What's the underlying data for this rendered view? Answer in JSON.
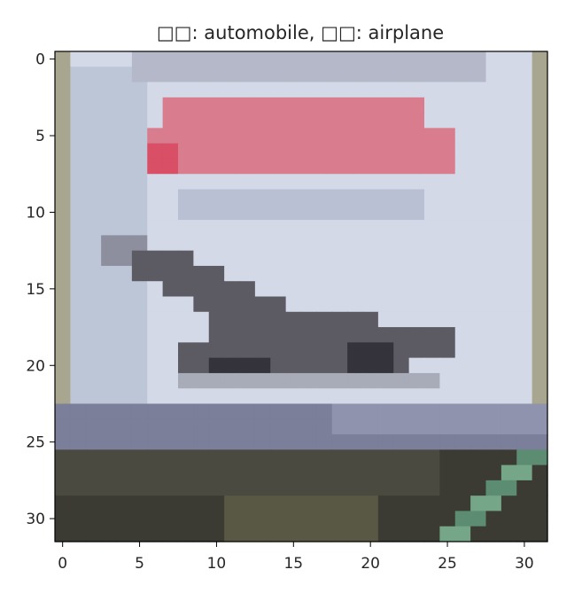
{
  "chart_data": {
    "type": "heatmap",
    "title": "□□: automobile, □□: airplane",
    "xlabel": "",
    "ylabel": "",
    "xlim": [
      -0.5,
      31.5
    ],
    "ylim": [
      31.5,
      -0.5
    ],
    "x_ticks": [
      "0",
      "5",
      "10",
      "15",
      "20",
      "25",
      "30"
    ],
    "y_ticks": [
      "0",
      "5",
      "10",
      "15",
      "20",
      "25",
      "30"
    ],
    "grid": false,
    "legend": "none",
    "image_size": [
      32,
      32
    ],
    "colors": {
      "sky": "#d3d9e6",
      "sky_left": "#bcc6d6",
      "frame_edge": "#a9a68f",
      "banner_top": "#b5b8c9",
      "banner_red": "#d87c8e",
      "banner_red_strong": "#d84f66",
      "banner_shadow": "#b9c0d3",
      "plane_light": "#8d8f9f",
      "plane_mid": "#5c5a63",
      "plane_dark": "#34323b",
      "plane_shadow": "#a8abb8",
      "ground_band": "#7b7f99",
      "ground_band_light": "#8f93ad",
      "ground_dark": "#3c3b33",
      "ground_mid": "#4a4a40",
      "ground_olive": "#595845",
      "grass_green": "#5c8c72",
      "grass_light": "#76a688"
    },
    "regions": [
      {
        "name": "sky",
        "x": [
          1,
          30
        ],
        "y": [
          0,
          22
        ],
        "color": "sky"
      },
      {
        "name": "sky-left",
        "x": [
          1,
          5
        ],
        "y": [
          1,
          22
        ],
        "color": "sky_left"
      },
      {
        "name": "frame-left",
        "x": [
          0,
          0
        ],
        "y": [
          0,
          23
        ],
        "color": "frame_edge"
      },
      {
        "name": "frame-right",
        "x": [
          31,
          31
        ],
        "y": [
          0,
          23
        ],
        "color": "frame_edge"
      },
      {
        "name": "banner-top",
        "x": [
          5,
          27
        ],
        "y": [
          0,
          1
        ],
        "color": "banner_top"
      },
      {
        "name": "banner-row-1",
        "x": [
          7,
          23
        ],
        "y": [
          3,
          4
        ],
        "color": "banner_red"
      },
      {
        "name": "banner-row-2",
        "x": [
          6,
          25
        ],
        "y": [
          5,
          5
        ],
        "color": "banner_red"
      },
      {
        "name": "banner-row-3",
        "x": [
          6,
          25
        ],
        "y": [
          6,
          7
        ],
        "color": "banner_red"
      },
      {
        "name": "banner-accent",
        "x": [
          6,
          7
        ],
        "y": [
          6,
          7
        ],
        "color": "banner_red_strong"
      },
      {
        "name": "banner-shadow",
        "x": [
          8,
          23
        ],
        "y": [
          9,
          10
        ],
        "color": "banner_shadow"
      },
      {
        "name": "plane-nose-1",
        "x": [
          3,
          5
        ],
        "y": [
          12,
          13
        ],
        "color": "plane_light"
      },
      {
        "name": "plane-nose-2",
        "x": [
          5,
          8
        ],
        "y": [
          13,
          14
        ],
        "color": "plane_mid"
      },
      {
        "name": "plane-body-1",
        "x": [
          7,
          10
        ],
        "y": [
          14,
          15
        ],
        "color": "plane_mid"
      },
      {
        "name": "plane-body-2",
        "x": [
          9,
          12
        ],
        "y": [
          15,
          16
        ],
        "color": "plane_mid"
      },
      {
        "name": "plane-body-3",
        "x": [
          10,
          14
        ],
        "y": [
          16,
          17
        ],
        "color": "plane_mid"
      },
      {
        "name": "plane-body-4",
        "x": [
          10,
          20
        ],
        "y": [
          17,
          18
        ],
        "color": "plane_mid"
      },
      {
        "name": "plane-tail",
        "x": [
          16,
          25
        ],
        "y": [
          18,
          19
        ],
        "color": "plane_mid"
      },
      {
        "name": "plane-wing",
        "x": [
          8,
          22
        ],
        "y": [
          19,
          20
        ],
        "color": "plane_mid"
      },
      {
        "name": "plane-wing-dark",
        "x": [
          10,
          13
        ],
        "y": [
          20,
          21
        ],
        "color": "plane_dark"
      },
      {
        "name": "plane-belly-dark",
        "x": [
          19,
          21
        ],
        "y": [
          19,
          20
        ],
        "color": "plane_dark"
      },
      {
        "name": "plane-belly",
        "x": [
          8,
          24
        ],
        "y": [
          21,
          21
        ],
        "color": "plane_shadow"
      },
      {
        "name": "ground-band",
        "x": [
          0,
          31
        ],
        "y": [
          23,
          25
        ],
        "color": "ground_band"
      },
      {
        "name": "ground-band-light",
        "x": [
          18,
          31
        ],
        "y": [
          23,
          24
        ],
        "color": "ground_band_light"
      },
      {
        "name": "ground-dark",
        "x": [
          0,
          31
        ],
        "y": [
          26,
          31
        ],
        "color": "ground_dark"
      },
      {
        "name": "ground-mid",
        "x": [
          0,
          24
        ],
        "y": [
          26,
          28
        ],
        "color": "ground_mid"
      },
      {
        "name": "ground-olive",
        "x": [
          11,
          20
        ],
        "y": [
          29,
          31
        ],
        "color": "ground_olive"
      }
    ],
    "diagonal_grass": {
      "cells": [
        [
          30,
          26
        ],
        [
          29,
          27
        ],
        [
          28,
          28
        ],
        [
          27,
          29
        ],
        [
          26,
          30
        ],
        [
          25,
          31
        ],
        [
          31,
          26
        ],
        [
          30,
          27
        ],
        [
          29,
          28
        ],
        [
          28,
          29
        ],
        [
          27,
          30
        ],
        [
          26,
          31
        ]
      ],
      "colors": [
        "grass_green",
        "grass_light"
      ]
    }
  }
}
